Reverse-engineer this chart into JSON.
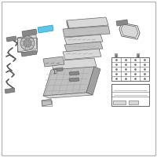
{
  "bg": "#f5f5f5",
  "border": "#bbbbbb",
  "part_light": "#d8d8d8",
  "part_mid": "#c0c0c0",
  "part_dark": "#a0a0a0",
  "part_darker": "#888888",
  "wire": "#555555",
  "blue_hl": "#5bc8e8",
  "white": "#ffffff",
  "grid_line": "#aaaaaa",
  "outline": "#666666"
}
